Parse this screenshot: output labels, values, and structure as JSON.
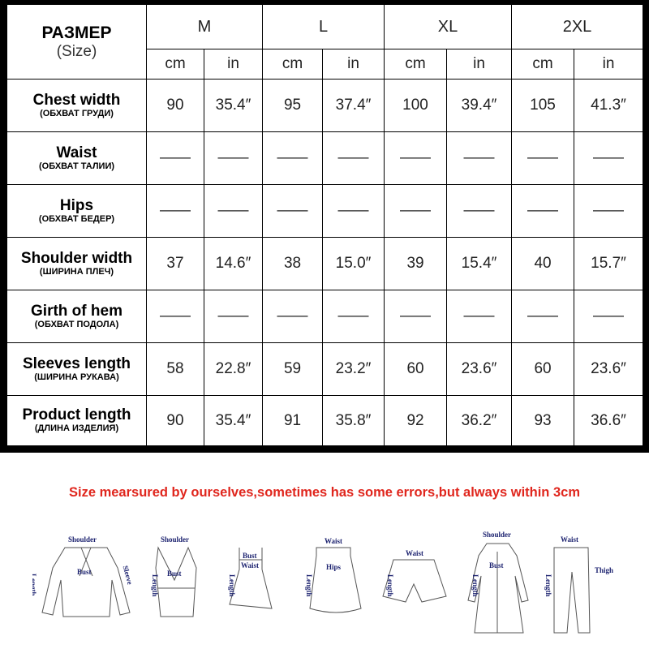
{
  "header": {
    "title": "РАЗМЕР",
    "subtitle": "(Size)",
    "sizes": [
      "M",
      "L",
      "XL",
      "2XL"
    ],
    "units": [
      "cm",
      "in"
    ]
  },
  "rows": [
    {
      "label": "Chest width",
      "label_ru": "(ОБХВАТ ГРУДИ)",
      "values": [
        "90",
        "35.4″",
        "95",
        "37.4″",
        "100",
        "39.4″",
        "105",
        "41.3″"
      ]
    },
    {
      "label": "Waist",
      "label_ru": "(ОБХВАТ ТАЛИИ)",
      "values": [
        "——",
        "——",
        "——",
        "——",
        "——",
        "——",
        "——",
        "——"
      ]
    },
    {
      "label": "Hips",
      "label_ru": "(ОБХВАТ БЕДЕР)",
      "values": [
        "——",
        "——",
        "——",
        "——",
        "——",
        "——",
        "——",
        "——"
      ]
    },
    {
      "label": "Shoulder width",
      "label_ru": "(ШИРИНА ПЛЕЧ)",
      "values": [
        "37",
        "14.6″",
        "38",
        "15.0″",
        "39",
        "15.4″",
        "40",
        "15.7″"
      ]
    },
    {
      "label": "Girth of hem",
      "label_ru": "(ОБХВАТ ПОДОЛА)",
      "values": [
        "——",
        "——",
        "——",
        "——",
        "——",
        "——",
        "——",
        "——"
      ]
    },
    {
      "label": "Sleeves length",
      "label_ru": "(ШИРИНА РУКАВА)",
      "values": [
        "58",
        "22.8″",
        "59",
        "23.2″",
        "60",
        "23.6″",
        "60",
        "23.6″"
      ]
    },
    {
      "label": "Product length",
      "label_ru": "(ДЛИНА ИЗДЕЛИЯ)",
      "values": [
        "90",
        "35.4″",
        "91",
        "35.8″",
        "92",
        "36.2″",
        "93",
        "36.6″"
      ]
    }
  ],
  "note": "Size mearsured by ourselves,sometimes has some errors,but always within 3cm",
  "note_color": "#e0261d",
  "figures": {
    "shoulder": "Shoulder",
    "bust": "Bust",
    "sleeve": "Sleeve",
    "length": "Length",
    "waist": "Waist",
    "hips": "Hips",
    "thigh": "Thigh"
  }
}
